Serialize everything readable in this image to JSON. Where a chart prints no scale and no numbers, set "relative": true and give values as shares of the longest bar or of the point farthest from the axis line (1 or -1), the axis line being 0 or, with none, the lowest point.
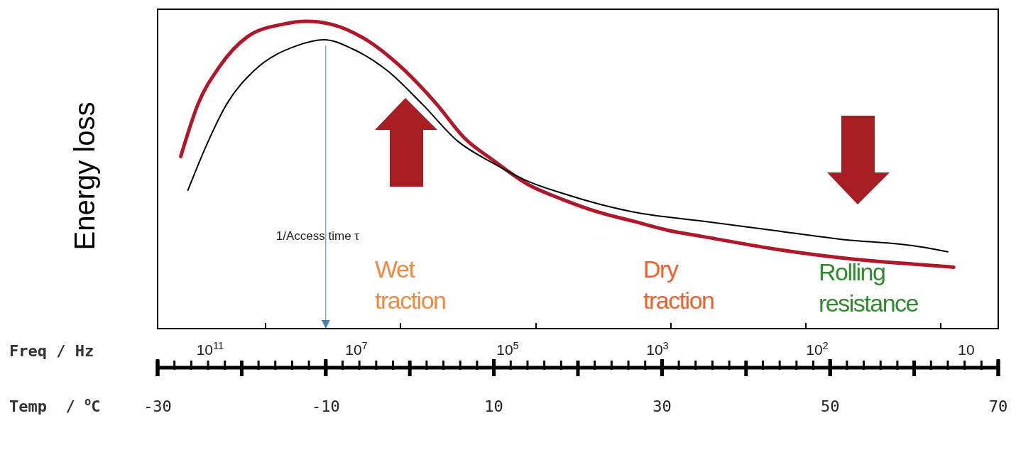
{
  "chart_data": {
    "type": "line",
    "relative": true,
    "ylabel": "Energy loss",
    "xlabel": "Temp  / $^{o}$C",
    "x2label": "Freq / Hz",
    "xlim": [
      -30,
      70
    ],
    "xticks": [
      -30,
      -10,
      10,
      30,
      50,
      70
    ],
    "series": [
      {
        "color": "#b0182a",
        "x": [
          -27.25,
          -25.2,
          -22.7,
          -19.3,
          -15.2,
          -12.25,
          -9.3,
          -5.2,
          -1.0,
          3.2,
          6.5,
          9.8,
          14.0,
          18.2,
          22.3,
          26.5,
          30.7,
          34.8,
          43.2,
          51.5,
          59.8,
          64.7
        ],
        "values": [
          0.56,
          0.73,
          0.85,
          0.95,
          0.99,
          1.0,
          0.99,
          0.94,
          0.85,
          0.73,
          0.62,
          0.55,
          0.47,
          0.42,
          0.38,
          0.35,
          0.32,
          0.3,
          0.26,
          0.23,
          0.21,
          0.2
        ]
      },
      {
        "color": "#000000",
        "x": [
          -26.4,
          -24.3,
          -21.8,
          -18.5,
          -13.5,
          -10.2,
          -6.8,
          -2.7,
          1.5,
          5.7,
          9.8,
          14.0,
          18.2,
          26.5,
          34.8,
          43.2,
          51.5,
          59.8,
          64.0
        ],
        "values": [
          0.45,
          0.59,
          0.73,
          0.84,
          0.92,
          0.94,
          0.91,
          0.84,
          0.73,
          0.61,
          0.54,
          0.48,
          0.44,
          0.38,
          0.35,
          0.32,
          0.29,
          0.27,
          0.25
        ]
      }
    ],
    "ref_lines": [
      {
        "axis": "x",
        "value": -10,
        "label": "1/Access time τ",
        "color": "#4a7fc1"
      }
    ],
    "annotations": [
      "Wet traction",
      "Dry traction",
      "Rolling resistance",
      "10$^{11}$",
      "10$^{7}$",
      "10$^{5}$",
      "10$^{3}$",
      "10$^{2}$",
      "10"
    ],
    "grid": false,
    "legend": false
  }
}
